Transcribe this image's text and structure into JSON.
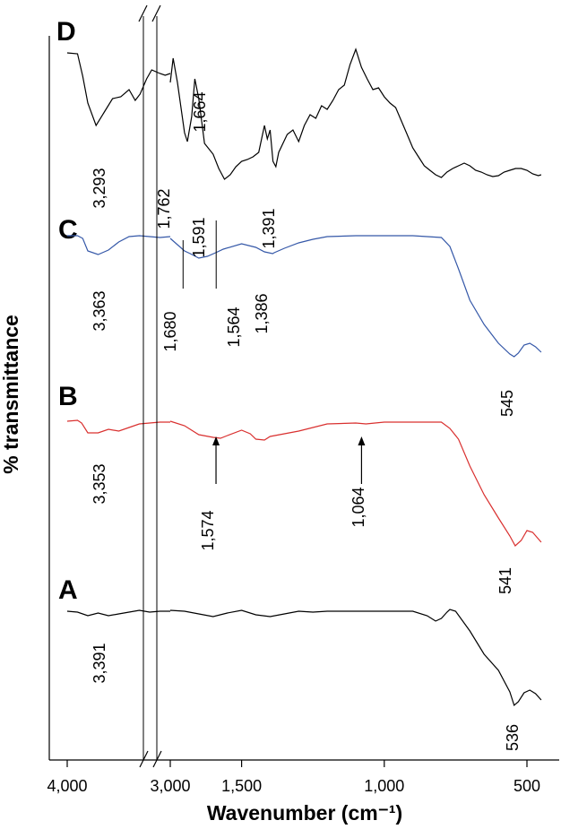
{
  "chart_data": {
    "type": "line",
    "ylabel": "% transmittance",
    "xlabel": "Wavenumber (cm⁻¹)",
    "x_axis": {
      "direction": "reversed",
      "broken": true,
      "segments": [
        [
          4000,
          3000
        ],
        [
          1750,
          450
        ]
      ],
      "ticks": [
        {
          "value": 4000,
          "label": "4,000"
        },
        {
          "value": 3000,
          "label": "3,000"
        },
        {
          "value": 1500,
          "label": "1,500"
        },
        {
          "value": 1000,
          "label": "1,000"
        },
        {
          "value": 500,
          "label": "500"
        }
      ]
    },
    "y_axis": {
      "tick_labels": false
    },
    "grid": false,
    "legend": "none",
    "series": [
      {
        "name": "A",
        "color": "#000000",
        "points": [
          [
            4000,
            682
          ],
          [
            3900,
            683
          ],
          [
            3800,
            687
          ],
          [
            3700,
            684
          ],
          [
            3600,
            687
          ],
          [
            3500,
            685
          ],
          [
            3400,
            683
          ],
          [
            3300,
            681
          ],
          [
            3200,
            683
          ],
          [
            3100,
            682
          ],
          [
            3000,
            682
          ],
          [
            1750,
            681
          ],
          [
            1700,
            682
          ],
          [
            1650,
            685
          ],
          [
            1600,
            688
          ],
          [
            1550,
            684
          ],
          [
            1500,
            681
          ],
          [
            1450,
            686
          ],
          [
            1400,
            688
          ],
          [
            1350,
            685
          ],
          [
            1300,
            682
          ],
          [
            1250,
            683
          ],
          [
            1200,
            682
          ],
          [
            1100,
            682
          ],
          [
            1000,
            682
          ],
          [
            900,
            682
          ],
          [
            850,
            687
          ],
          [
            820,
            693
          ],
          [
            800,
            690
          ],
          [
            780,
            683
          ],
          [
            770,
            680
          ],
          [
            750,
            682
          ],
          [
            700,
            704
          ],
          [
            650,
            730
          ],
          [
            600,
            748
          ],
          [
            560,
            772
          ],
          [
            545,
            787
          ],
          [
            530,
            783
          ],
          [
            510,
            773
          ],
          [
            490,
            770
          ],
          [
            470,
            774
          ],
          [
            450,
            781
          ]
        ],
        "annotations": [
          {
            "label": "3,391",
            "wavenumber": 3391
          },
          {
            "label": "536",
            "wavenumber": 536
          }
        ]
      },
      {
        "name": "B",
        "color": "#d9302f",
        "points": [
          [
            4000,
            470
          ],
          [
            3900,
            469
          ],
          [
            3860,
            472
          ],
          [
            3800,
            483
          ],
          [
            3700,
            483
          ],
          [
            3600,
            479
          ],
          [
            3500,
            481
          ],
          [
            3400,
            477
          ],
          [
            3300,
            473
          ],
          [
            3200,
            472
          ],
          [
            3100,
            471
          ],
          [
            3000,
            471
          ],
          [
            1750,
            470
          ],
          [
            1700,
            475
          ],
          [
            1650,
            485
          ],
          [
            1600,
            488
          ],
          [
            1574,
            489
          ],
          [
            1550,
            486
          ],
          [
            1500,
            480
          ],
          [
            1470,
            484
          ],
          [
            1450,
            490
          ],
          [
            1420,
            491
          ],
          [
            1400,
            487
          ],
          [
            1300,
            481
          ],
          [
            1200,
            473
          ],
          [
            1100,
            472
          ],
          [
            1064,
            473
          ],
          [
            1000,
            471
          ],
          [
            900,
            471
          ],
          [
            800,
            471
          ],
          [
            770,
            478
          ],
          [
            740,
            490
          ],
          [
            700,
            520
          ],
          [
            650,
            552
          ],
          [
            600,
            578
          ],
          [
            560,
            598
          ],
          [
            541,
            609
          ],
          [
            520,
            603
          ],
          [
            500,
            592
          ],
          [
            480,
            594
          ],
          [
            450,
            605
          ]
        ],
        "annotations": [
          {
            "label": "3,353",
            "wavenumber": 3353
          },
          {
            "label": "1,574",
            "wavenumber": 1574,
            "arrow": true
          },
          {
            "label": "1,064",
            "wavenumber": 1064,
            "arrow": true
          },
          {
            "label": "541",
            "wavenumber": 541
          }
        ]
      },
      {
        "name": "C",
        "color": "#3558a8",
        "points": [
          [
            4000,
            263
          ],
          [
            3900,
            263
          ],
          [
            3850,
            266
          ],
          [
            3800,
            280
          ],
          [
            3700,
            284
          ],
          [
            3600,
            279
          ],
          [
            3500,
            270
          ],
          [
            3400,
            264
          ],
          [
            3300,
            263
          ],
          [
            3200,
            264
          ],
          [
            3100,
            265
          ],
          [
            3000,
            264
          ],
          [
            1750,
            266
          ],
          [
            1700,
            280
          ],
          [
            1680,
            283
          ],
          [
            1650,
            288
          ],
          [
            1620,
            286
          ],
          [
            1591,
            282
          ],
          [
            1564,
            278
          ],
          [
            1500,
            272
          ],
          [
            1450,
            276
          ],
          [
            1420,
            281
          ],
          [
            1391,
            283
          ],
          [
            1386,
            282
          ],
          [
            1350,
            277
          ],
          [
            1300,
            271
          ],
          [
            1250,
            267
          ],
          [
            1200,
            264
          ],
          [
            1100,
            263
          ],
          [
            1000,
            263
          ],
          [
            900,
            263
          ],
          [
            800,
            265
          ],
          [
            770,
            275
          ],
          [
            740,
            300
          ],
          [
            700,
            335
          ],
          [
            650,
            362
          ],
          [
            600,
            383
          ],
          [
            560,
            395
          ],
          [
            545,
            398
          ],
          [
            530,
            394
          ],
          [
            510,
            385
          ],
          [
            490,
            383
          ],
          [
            470,
            387
          ],
          [
            450,
            393
          ]
        ],
        "annotations": [
          {
            "label": "3,363",
            "wavenumber": 3363
          },
          {
            "label": "1,762",
            "wavenumber": 1762
          },
          {
            "label": "1,591",
            "wavenumber": 1591
          },
          {
            "label": "1,391",
            "wavenumber": 1391
          },
          {
            "label": "1,680",
            "wavenumber": 1680,
            "marker": true
          },
          {
            "label": "1,564",
            "wavenumber": 1564,
            "marker": true
          },
          {
            "label": "1,386",
            "wavenumber": 1386
          },
          {
            "label": "545",
            "wavenumber": 545
          }
        ]
      },
      {
        "name": "D",
        "color": "#000000",
        "points": [
          [
            4000,
            59
          ],
          [
            3900,
            60
          ],
          [
            3850,
            85
          ],
          [
            3800,
            115
          ],
          [
            3720,
            140
          ],
          [
            3640,
            125
          ],
          [
            3560,
            110
          ],
          [
            3480,
            108
          ],
          [
            3400,
            100
          ],
          [
            3340,
            112
          ],
          [
            3293,
            105
          ],
          [
            3230,
            88
          ],
          [
            3180,
            78
          ],
          [
            3100,
            82
          ],
          [
            3050,
            84
          ],
          [
            3000,
            82
          ],
          [
            1750,
            92
          ],
          [
            1740,
            65
          ],
          [
            1725,
            92
          ],
          [
            1700,
            148
          ],
          [
            1690,
            158
          ],
          [
            1675,
            130
          ],
          [
            1664,
            88
          ],
          [
            1650,
            110
          ],
          [
            1630,
            160
          ],
          [
            1600,
            172
          ],
          [
            1580,
            188
          ],
          [
            1560,
            200
          ],
          [
            1540,
            195
          ],
          [
            1520,
            186
          ],
          [
            1500,
            180
          ],
          [
            1480,
            178
          ],
          [
            1460,
            175
          ],
          [
            1440,
            170
          ],
          [
            1420,
            140
          ],
          [
            1410,
            155
          ],
          [
            1400,
            145
          ],
          [
            1390,
            180
          ],
          [
            1380,
            186
          ],
          [
            1370,
            170
          ],
          [
            1340,
            150
          ],
          [
            1320,
            145
          ],
          [
            1300,
            158
          ],
          [
            1280,
            140
          ],
          [
            1260,
            128
          ],
          [
            1240,
            132
          ],
          [
            1220,
            118
          ],
          [
            1200,
            122
          ],
          [
            1180,
            112
          ],
          [
            1160,
            100
          ],
          [
            1140,
            95
          ],
          [
            1120,
            72
          ],
          [
            1100,
            55
          ],
          [
            1080,
            75
          ],
          [
            1060,
            88
          ],
          [
            1040,
            100
          ],
          [
            1020,
            98
          ],
          [
            1000,
            108
          ],
          [
            980,
            115
          ],
          [
            960,
            120
          ],
          [
            940,
            135
          ],
          [
            920,
            150
          ],
          [
            900,
            165
          ],
          [
            880,
            175
          ],
          [
            860,
            185
          ],
          [
            840,
            190
          ],
          [
            820,
            195
          ],
          [
            800,
            198
          ],
          [
            780,
            192
          ],
          [
            760,
            188
          ],
          [
            740,
            185
          ],
          [
            720,
            182
          ],
          [
            700,
            185
          ],
          [
            680,
            190
          ],
          [
            660,
            192
          ],
          [
            640,
            195
          ],
          [
            620,
            197
          ],
          [
            600,
            196
          ],
          [
            580,
            192
          ],
          [
            560,
            190
          ],
          [
            540,
            188
          ],
          [
            520,
            188
          ],
          [
            500,
            190
          ],
          [
            480,
            194
          ],
          [
            460,
            196
          ],
          [
            450,
            195
          ]
        ],
        "annotations": [
          {
            "label": "3,293",
            "wavenumber": 3293
          },
          {
            "label": "1,664",
            "wavenumber": 1664
          }
        ]
      }
    ]
  }
}
